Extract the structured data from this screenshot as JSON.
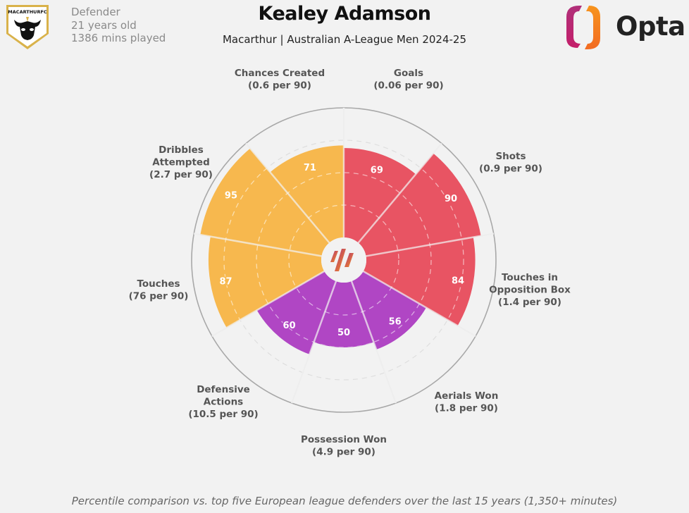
{
  "player": {
    "name": "Kealey Adamson",
    "subtitle": "Macarthur | Australian A-League Men 2024-25",
    "position": "Defender",
    "age": "21 years old",
    "minutes": "1386 mins played",
    "club_crest_text": "MACARTHURFC"
  },
  "brand": {
    "logo_text": "Opta"
  },
  "footer": "Percentile comparison vs. top five European league defenders over the last 15 years (1,350+ minutes)",
  "colors": {
    "attacking": "#E85463",
    "possession": "#F7B84E",
    "defending": "#B046C4",
    "background": "#f2f2f2"
  },
  "chart_data": {
    "type": "radar-bar",
    "title": "Kealey Adamson",
    "rlim": [
      0,
      100
    ],
    "gridlines": [
      25,
      50,
      75
    ],
    "series": [
      {
        "metric": "Goals",
        "per90": "(0.06 per 90)",
        "percentile": 69,
        "group": "attacking"
      },
      {
        "metric": "Shots",
        "per90": "(0.9 per 90)",
        "percentile": 90,
        "group": "attacking"
      },
      {
        "metric": "Touches in Opposition Box",
        "per90": "(1.4 per 90)",
        "percentile": 84,
        "group": "attacking"
      },
      {
        "metric": "Aerials Won",
        "per90": "(1.8 per 90)",
        "percentile": 56,
        "group": "defending"
      },
      {
        "metric": "Possession Won",
        "per90": "(4.9 per 90)",
        "percentile": 50,
        "group": "defending"
      },
      {
        "metric": "Defensive Actions",
        "per90": "(10.5 per 90)",
        "percentile": 60,
        "group": "defending"
      },
      {
        "metric": "Touches",
        "per90": "(76 per 90)",
        "percentile": 87,
        "group": "possession"
      },
      {
        "metric": "Dribbles Attempted",
        "per90": "(2.7 per 90)",
        "percentile": 95,
        "group": "possession"
      },
      {
        "metric": "Chances Created",
        "per90": "(0.6 per 90)",
        "percentile": 71,
        "group": "possession"
      }
    ]
  }
}
